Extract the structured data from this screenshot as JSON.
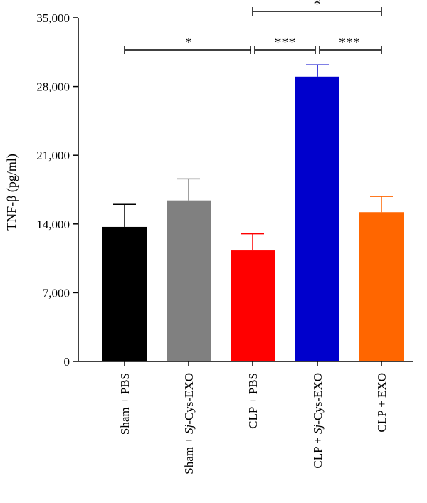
{
  "chart_data": {
    "type": "bar",
    "ylabel": "TNF-β (pg/ml)",
    "ylim": [
      0,
      35000
    ],
    "yticks": [
      {
        "value": 0,
        "label": "0"
      },
      {
        "value": 7000,
        "label": "7,000"
      },
      {
        "value": 14000,
        "label": "14,000"
      },
      {
        "value": 21000,
        "label": "21,000"
      },
      {
        "value": 28000,
        "label": "28,000"
      },
      {
        "value": 35000,
        "label": "35,000"
      }
    ],
    "categories": [
      {
        "pre": "Sham + ",
        "italic": "",
        "post": "PBS"
      },
      {
        "pre": "Sham + ",
        "italic": "Sj",
        "post": "-Cys-EXO"
      },
      {
        "pre": "CLP + ",
        "italic": "",
        "post": "PBS"
      },
      {
        "pre": "CLP + ",
        "italic": "Sj",
        "post": "-Cys-EXO"
      },
      {
        "pre": "CLP + ",
        "italic": "",
        "post": "EXO"
      }
    ],
    "values": [
      13700,
      16400,
      11300,
      29000,
      15200
    ],
    "errors": [
      2300,
      2200,
      1700,
      1200,
      1600
    ],
    "colors": [
      "#000000",
      "#808080",
      "#ff0000",
      "#0000cc",
      "#ff6600"
    ],
    "significance": [
      {
        "from": 0,
        "to": 2,
        "label": "*"
      },
      {
        "from": 2,
        "to": 3,
        "label": "***"
      },
      {
        "from": 3,
        "to": 4,
        "label": "***"
      },
      {
        "from": 2,
        "to": 4,
        "label": "*"
      }
    ]
  }
}
